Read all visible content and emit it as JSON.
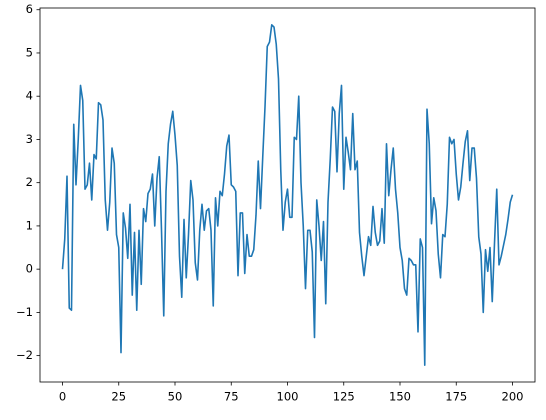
{
  "chart_data": {
    "type": "line",
    "color": "#1f77b4",
    "x": [
      0,
      1,
      2,
      3,
      4,
      5,
      6,
      7,
      8,
      9,
      10,
      11,
      12,
      13,
      14,
      15,
      16,
      17,
      18,
      19,
      20,
      21,
      22,
      23,
      24,
      25,
      26,
      27,
      28,
      29,
      30,
      31,
      32,
      33,
      34,
      35,
      36,
      37,
      38,
      39,
      40,
      41,
      42,
      43,
      44,
      45,
      46,
      47,
      48,
      49,
      50,
      51,
      52,
      53,
      54,
      55,
      56,
      57,
      58,
      59,
      60,
      61,
      62,
      63,
      64,
      65,
      66,
      67,
      68,
      69,
      70,
      71,
      72,
      73,
      74,
      75,
      76,
      77,
      78,
      79,
      80,
      81,
      82,
      83,
      84,
      85,
      86,
      87,
      88,
      89,
      90,
      91,
      92,
      93,
      94,
      95,
      96,
      97,
      98,
      99,
      100,
      101,
      102,
      103,
      104,
      105,
      106,
      107,
      108,
      109,
      110,
      111,
      112,
      113,
      114,
      115,
      116,
      117,
      118,
      119,
      120,
      121,
      122,
      123,
      124,
      125,
      126,
      127,
      128,
      129,
      130,
      131,
      132,
      133,
      134,
      135,
      136,
      137,
      138,
      139,
      140,
      141,
      142,
      143,
      144,
      145,
      146,
      147,
      148,
      149,
      150,
      151,
      152,
      153,
      154,
      155,
      156,
      157,
      158,
      159,
      160,
      161,
      162,
      163,
      164,
      165,
      166,
      167,
      168,
      169,
      170,
      171,
      172,
      173,
      174,
      175,
      176,
      177,
      178,
      179,
      180,
      181,
      182,
      183,
      184,
      185,
      186,
      187,
      188,
      189,
      190,
      191,
      192,
      193,
      194,
      195,
      196,
      197,
      198,
      199,
      200
    ],
    "values": [
      0,
      0.7,
      2.15,
      -0.9,
      -0.95,
      3.35,
      1.95,
      3.0,
      4.25,
      3.9,
      1.85,
      1.95,
      2.45,
      1.6,
      2.65,
      2.55,
      3.85,
      3.8,
      3.45,
      1.6,
      0.9,
      1.55,
      2.8,
      2.45,
      0.8,
      0.5,
      -1.93,
      1.3,
      0.95,
      0.25,
      1.5,
      -0.6,
      0.85,
      -0.95,
      0.9,
      -0.35,
      1.4,
      1.1,
      1.75,
      1.85,
      2.2,
      1.0,
      2.1,
      2.6,
      0.9,
      -1.08,
      1.8,
      2.9,
      3.35,
      3.65,
      3.1,
      2.4,
      0.3,
      -0.65,
      1.15,
      -0.2,
      0.8,
      2.05,
      1.6,
      0.15,
      -0.25,
      0.9,
      1.5,
      0.9,
      1.35,
      1.4,
      0.9,
      -0.85,
      1.65,
      1.0,
      1.8,
      1.7,
      2.2,
      2.85,
      3.1,
      1.95,
      1.9,
      1.8,
      -0.15,
      1.3,
      1.3,
      -0.1,
      0.8,
      0.3,
      0.3,
      0.45,
      1.25,
      2.5,
      1.4,
      2.6,
      3.75,
      5.15,
      5.25,
      5.65,
      5.6,
      5.2,
      4.4,
      2.3,
      0.9,
      1.55,
      1.85,
      1.2,
      1.2,
      3.05,
      3.0,
      4.0,
      2.0,
      1.0,
      -0.45,
      0.9,
      0.9,
      0.4,
      -1.58,
      1.6,
      1.0,
      0.2,
      1.1,
      -0.8,
      1.55,
      2.55,
      3.75,
      3.65,
      2.25,
      3.6,
      4.25,
      1.85,
      3.05,
      2.7,
      2.3,
      3.6,
      2.3,
      2.5,
      0.85,
      0.3,
      -0.15,
      0.3,
      0.75,
      0.55,
      1.45,
      0.85,
      0.55,
      0.65,
      1.4,
      0.6,
      2.9,
      1.7,
      2.3,
      2.8,
      1.85,
      1.3,
      0.5,
      0.2,
      -0.45,
      -0.6,
      0.25,
      0.2,
      0.1,
      0.1,
      -1.45,
      0.7,
      0.5,
      -2.22,
      3.7,
      2.9,
      1.05,
      1.65,
      1.35,
      0.35,
      -0.2,
      0.8,
      0.75,
      1.5,
      3.05,
      2.9,
      3.0,
      2.2,
      1.6,
      1.9,
      2.45,
      2.95,
      3.2,
      2.05,
      2.8,
      2.8,
      2.1,
      0.75,
      0.35,
      -1.0,
      0.45,
      -0.05,
      0.5,
      -0.75,
      0.6,
      1.85,
      0.1,
      0.3,
      0.55,
      0.8,
      1.15,
      1.55,
      1.72
    ],
    "xlim": [
      -10,
      210
    ],
    "xticks": [
      0,
      25,
      50,
      75,
      100,
      125,
      150,
      175,
      200
    ],
    "ylim": [
      -2.61,
      6.04
    ],
    "yticks": [
      {
        "value": -2,
        "label": "−2"
      },
      {
        "value": -1,
        "label": "−1"
      },
      0,
      1,
      2,
      3,
      4,
      5,
      6
    ]
  }
}
